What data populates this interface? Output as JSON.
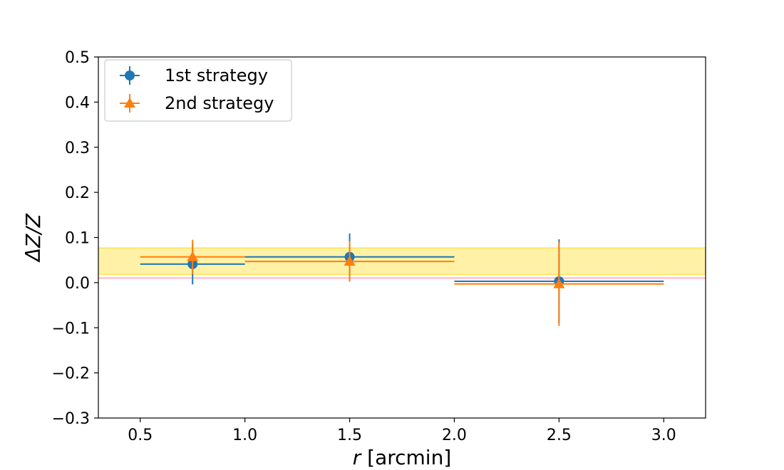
{
  "chart_data": {
    "type": "scatter",
    "title": "",
    "xlabel_var": "r",
    "xlabel_rest": " [arcmin]",
    "ylabel": "ΔZ/Z",
    "xlim": [
      0.3,
      3.2
    ],
    "ylim": [
      -0.3,
      0.5
    ],
    "xticks": [
      0.5,
      1.0,
      1.5,
      2.0,
      2.5,
      3.0
    ],
    "xtick_labels": [
      "0.5",
      "1.0",
      "1.5",
      "2.0",
      "2.5",
      "3.0"
    ],
    "yticks": [
      -0.3,
      -0.2,
      -0.1,
      0.0,
      0.1,
      0.2,
      0.3,
      0.4,
      0.5
    ],
    "ytick_labels": [
      "−0.3",
      "−0.2",
      "−0.1",
      "0.0",
      "0.1",
      "0.2",
      "0.3",
      "0.4",
      "0.5"
    ],
    "grid": false,
    "legend_position": "top-left",
    "band": {
      "y_low": 0.018,
      "y_high": 0.077,
      "color": "#ffd700"
    },
    "hline": {
      "y": 0.01,
      "color": "#ffb6c1"
    },
    "series": [
      {
        "name": "1st strategy",
        "marker": "circle",
        "color": "#1f77b4",
        "points": [
          {
            "x": 0.75,
            "y": 0.041,
            "xerr_low": 0.25,
            "xerr_high": 0.25,
            "yerr_low": 0.045,
            "yerr_high": 0.045
          },
          {
            "x": 1.5,
            "y": 0.057,
            "xerr_low": 0.5,
            "xerr_high": 0.5,
            "yerr_low": 0.052,
            "yerr_high": 0.052
          },
          {
            "x": 2.5,
            "y": 0.003,
            "xerr_low": 0.5,
            "xerr_high": 0.5,
            "yerr_low": 0.093,
            "yerr_high": 0.093
          }
        ]
      },
      {
        "name": "2nd strategy",
        "marker": "triangle",
        "color": "#ff7f0e",
        "points": [
          {
            "x": 0.75,
            "y": 0.057,
            "xerr_low": 0.25,
            "xerr_high": 0.25,
            "yerr_low": 0.038,
            "yerr_high": 0.038
          },
          {
            "x": 1.5,
            "y": 0.047,
            "xerr_low": 0.5,
            "xerr_high": 0.5,
            "yerr_low": 0.045,
            "yerr_high": 0.045
          },
          {
            "x": 2.5,
            "y": -0.003,
            "xerr_low": 0.5,
            "xerr_high": 0.5,
            "yerr_low": 0.093,
            "yerr_high": 0.093
          }
        ]
      }
    ]
  }
}
